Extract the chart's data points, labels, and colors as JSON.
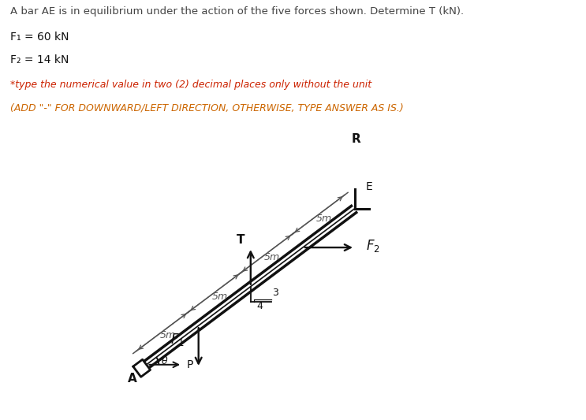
{
  "title_line": "A bar AE is in equilibrium under the action of the five forces shown. Determine T (kN).",
  "f1_text": "F₁ = 60 kN",
  "f2_text": "F₂ = 14 kN",
  "instruction1": "*type the numerical value in two (2) decimal places only without the unit",
  "instruction2": "(ADD \"-\" FOR DOWNWARD/LEFT DIRECTION, OTHERWISE, TYPE ANSWER AS IS.)",
  "bg_color": "#ffffff",
  "bar_color": "#111111",
  "dim_color": "#555555",
  "text_color": "#111111",
  "title_color": "#444444",
  "f_subscript_color": "#222222",
  "instruction1_color": "#cc2200",
  "instruction2_color": "#cc6600"
}
